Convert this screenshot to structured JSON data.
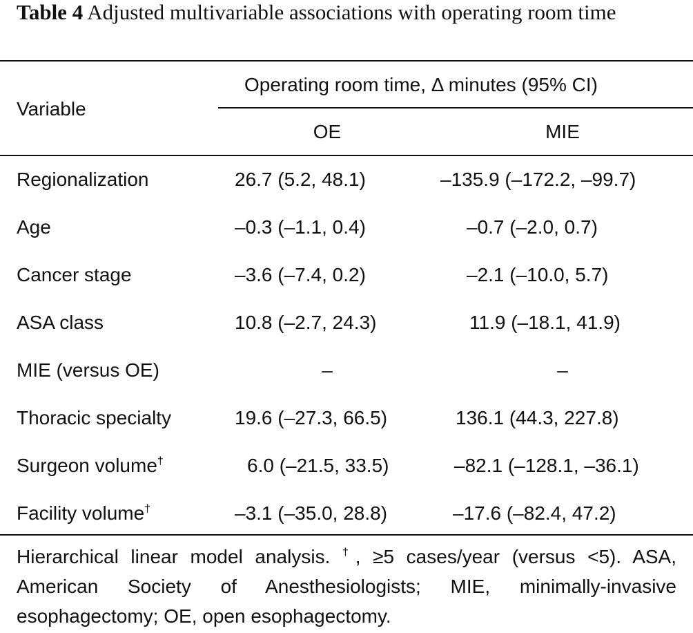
{
  "caption": {
    "label": "Table 4",
    "text": "Adjusted multivariable associations with operating room time"
  },
  "header": {
    "variable": "Variable",
    "group": "Operating room time, Δ minutes (95% CI)",
    "col_oe": "OE",
    "col_mie": "MIE"
  },
  "rows": [
    {
      "label": "Regionalization",
      "sup": "",
      "oe": "26.7 (5.2, 48.1)",
      "mie": "–135.9 (–172.2, –99.7)"
    },
    {
      "label": "Age",
      "sup": "",
      "oe": "–0.3 (–1.1, 0.4)",
      "mie": "–0.7 (–2.0, 0.7)"
    },
    {
      "label": "Cancer stage",
      "sup": "",
      "oe": "–3.6 (–7.4, 0.2)",
      "mie": "–2.1 (–10.0, 5.7)"
    },
    {
      "label": "ASA class",
      "sup": "",
      "oe": "10.8 (–2.7, 24.3)",
      "mie": "11.9 (–18.1, 41.9)"
    },
    {
      "label": "MIE (versus OE)",
      "sup": "",
      "oe": "–",
      "mie": "–"
    },
    {
      "label": "Thoracic specialty",
      "sup": "",
      "oe": "19.6 (–27.3, 66.5)",
      "mie": "136.1 (44.3, 227.8)"
    },
    {
      "label": "Surgeon volume",
      "sup": "†",
      "oe": "6.0 (–21.5, 33.5)",
      "mie": "–82.1 (–128.1, –36.1)"
    },
    {
      "label": "Facility volume",
      "sup": "†",
      "oe": "–3.1 (–35.0, 28.8)",
      "mie": "–17.6 (–82.4, 47.2)"
    }
  ],
  "footnote": {
    "part1": "Hierarchical linear model analysis. ",
    "sup": "†",
    "part2": ", ≥5 cases/year (versus <5). ASA, American Society of Anesthesiologists; MIE, minimally-invasive esophagectomy; OE, open esophagectomy."
  }
}
